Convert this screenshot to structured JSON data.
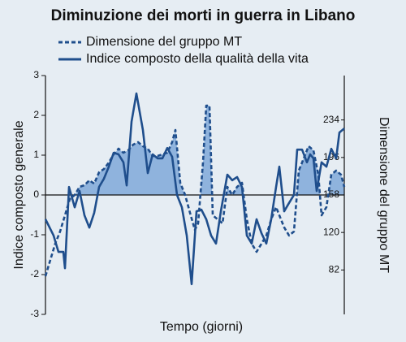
{
  "chart_data": {
    "type": "line",
    "title": "Diminuzione dei morti in guerra in Libano",
    "xlabel": "Tempo (giorni)",
    "ylabel": "Indice composto generale",
    "y2label": "Dimensione del gruppo MT",
    "xlim": [
      0,
      368
    ],
    "ylim": [
      -3,
      3
    ],
    "yticks": [
      3,
      2,
      1,
      0,
      -1,
      -2,
      -3
    ],
    "y2lim": [
      37,
      279
    ],
    "y2ticks": [
      234,
      196,
      158,
      120,
      82
    ],
    "series": [
      {
        "name": "Dimensione del gruppo MT",
        "color": "#1f4e8c",
        "style": "dashed",
        "axis": "y2",
        "fill_above": 158,
        "fill_color": "#8fb3dd",
        "x": [
          0,
          6,
          12,
          18,
          24,
          30,
          36,
          42,
          48,
          54,
          60,
          66,
          72,
          78,
          84,
          90,
          96,
          102,
          108,
          114,
          120,
          126,
          132,
          138,
          144,
          150,
          156,
          160,
          166,
          172,
          178,
          184,
          188,
          194,
          198,
          202,
          206,
          212,
          218,
          224,
          230,
          236,
          242,
          248,
          254,
          260,
          266,
          272,
          278,
          284,
          288,
          294,
          300,
          306,
          312,
          318,
          324,
          330,
          336,
          340,
          346,
          352,
          358,
          364,
          368
        ],
        "values": [
          75.7,
          92.2,
          108.6,
          121,
          137.4,
          153.9,
          158,
          166.2,
          167.9,
          172.8,
          169.5,
          181,
          184.3,
          190.9,
          199.2,
          204.9,
          200.8,
          203.3,
          209,
          211.5,
          207.4,
          204.9,
          197.5,
          197.5,
          199.2,
          200.8,
          211.5,
          223.8,
          170.3,
          158,
          139.9,
          122.6,
          129.2,
          190.9,
          248.5,
          248.5,
          137.4,
          133.3,
          129.2,
          166.2,
          158,
          166.2,
          170.3,
          133.3,
          108.6,
          100.4,
          108.6,
          116.9,
          133.3,
          145.7,
          137.4,
          125.1,
          116.9,
          121,
          182.7,
          195,
          207.4,
          203.3,
          178.6,
          137.4,
          145.7,
          178.6,
          182.7,
          178.6,
          166.2
        ]
      },
      {
        "name": "Indice composto della qualità della vita",
        "color": "#1f4e8c",
        "style": "solid",
        "x": [
          0,
          10,
          16,
          22,
          24,
          29,
          36,
          42,
          48,
          54,
          60,
          66,
          72,
          78,
          84,
          90,
          96,
          100,
          106,
          112,
          120,
          126,
          132,
          138,
          144,
          150,
          156,
          162,
          168,
          174,
          180,
          186,
          192,
          198,
          204,
          210,
          216,
          224,
          230,
          236,
          242,
          248,
          254,
          260,
          266,
          272,
          278,
          284,
          288,
          294,
          300,
          306,
          310,
          316,
          322,
          326,
          330,
          334,
          340,
          346,
          352,
          358,
          362,
          368
        ],
        "values": [
          -0.61,
          -1.02,
          -1.43,
          -1.43,
          -1.84,
          0.2,
          -0.31,
          0.1,
          -0.51,
          -0.82,
          -0.45,
          0.2,
          0.41,
          0.71,
          1.06,
          1.02,
          0.82,
          0.24,
          1.84,
          2.55,
          1.63,
          0.55,
          1.02,
          0.92,
          0.92,
          1.18,
          0.96,
          0,
          -0.31,
          -1.02,
          -2.24,
          -0.41,
          -0.37,
          -0.61,
          -1.02,
          -1.22,
          -0.41,
          0.51,
          0.37,
          0.45,
          0.2,
          -1.02,
          -1.22,
          -0.61,
          -0.96,
          -1.22,
          -0.61,
          0.2,
          0.71,
          -0.41,
          -0.2,
          0,
          1.14,
          1.14,
          0.82,
          1.02,
          0.92,
          0.1,
          0.82,
          0.71,
          1.16,
          0.92,
          1.57,
          1.67
        ]
      }
    ]
  }
}
